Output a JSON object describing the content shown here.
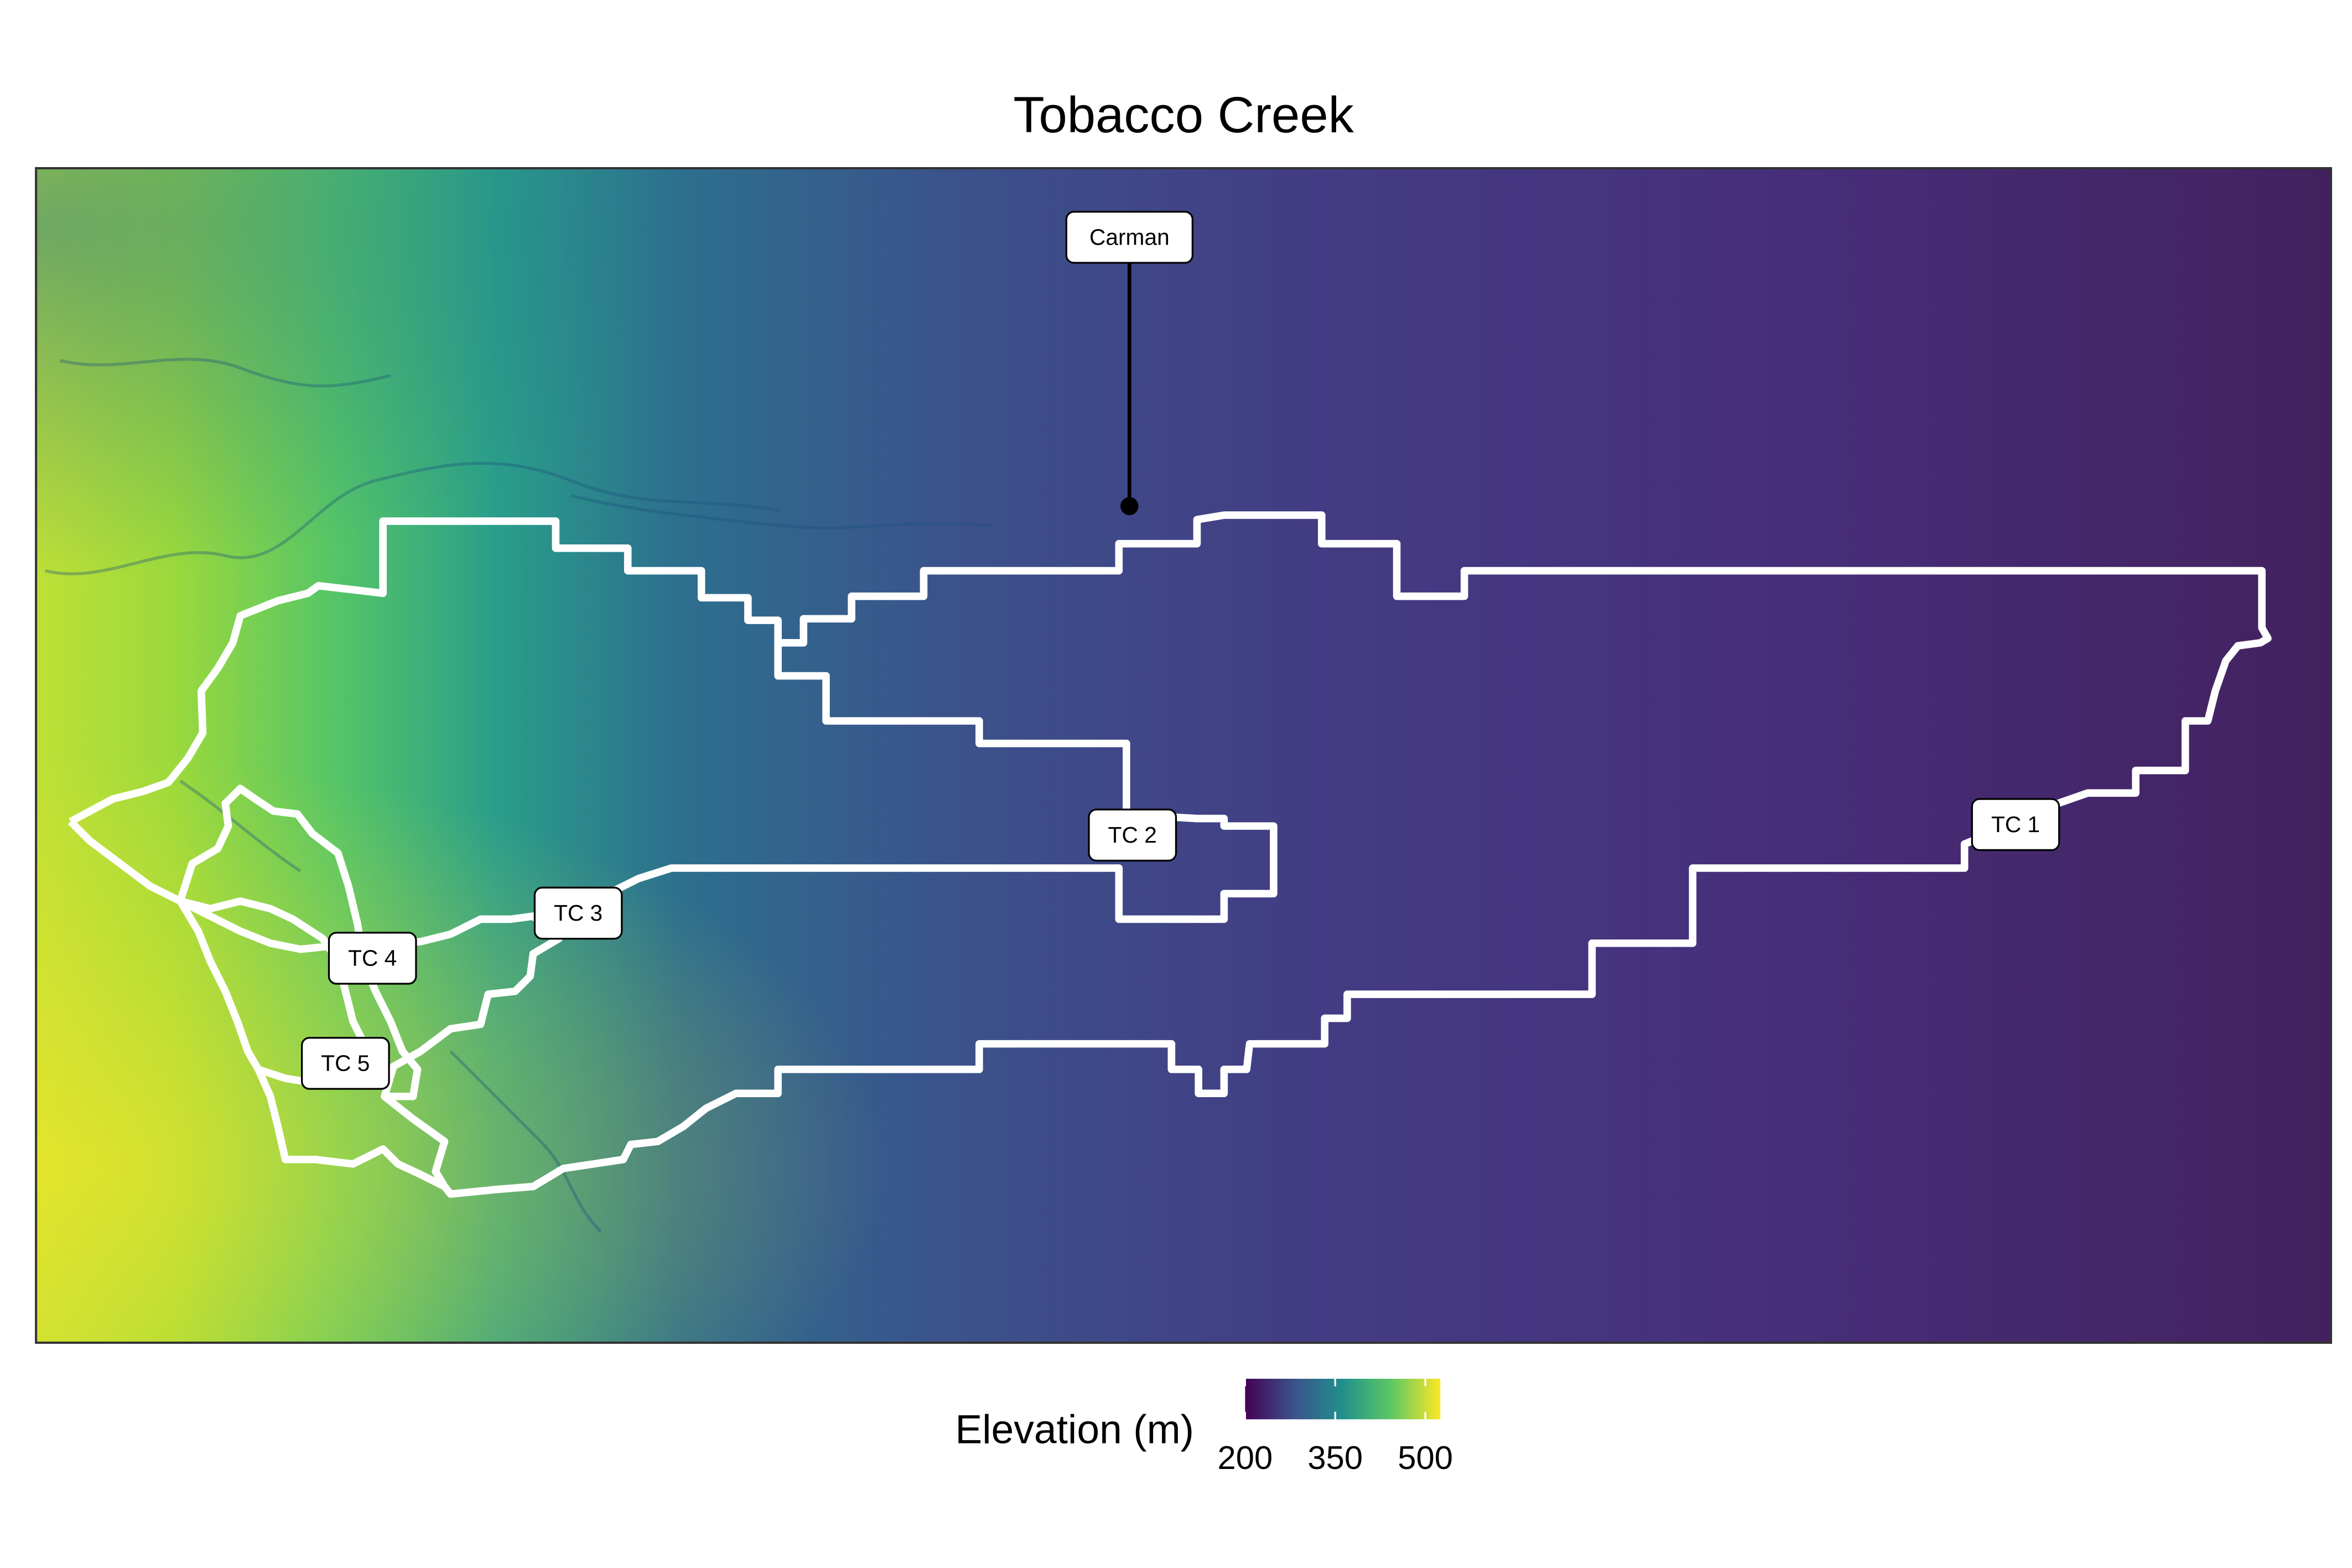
{
  "title": "Tobacco Creek",
  "legend": {
    "title": "Elevation (m)",
    "ticks": [
      "200",
      "350",
      "500"
    ],
    "colormap": "viridis",
    "colors": [
      "#440154",
      "#3b528b",
      "#21908c",
      "#5dc863",
      "#fde725"
    ]
  },
  "labels": {
    "carman": "Carman",
    "tc1": "TC 1",
    "tc2": "TC 2",
    "tc3": "TC 3",
    "tc4": "TC 4",
    "tc5": "TC 5"
  },
  "colors": {
    "boundary": "#ffffff",
    "frame": "#333333",
    "label_bg": "#ffffff",
    "label_border": "#000000"
  }
}
